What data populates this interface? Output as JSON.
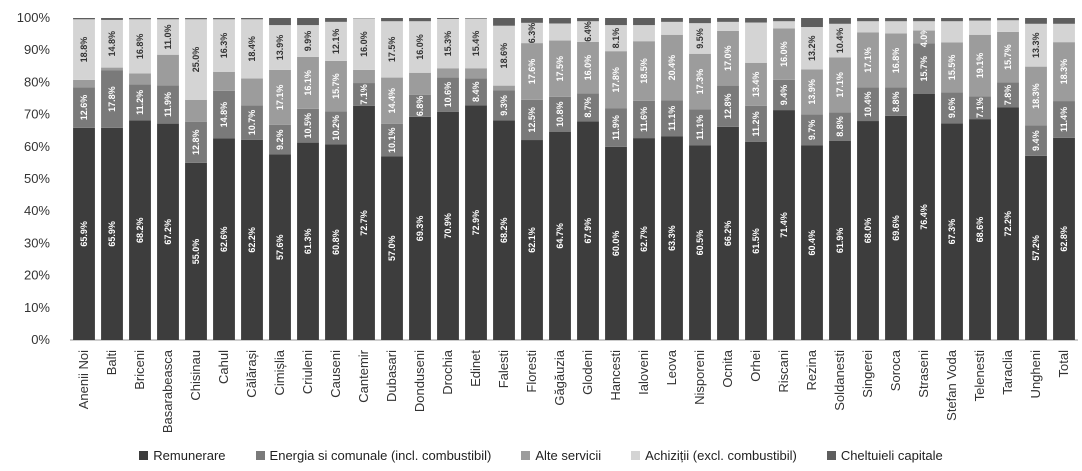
{
  "chart_data": {
    "type": "bar",
    "stacked": true,
    "percent": true,
    "title": "",
    "xlabel": "",
    "ylabel": "",
    "ylim": [
      0,
      100
    ],
    "yticks": [
      "0%",
      "10%",
      "20%",
      "30%",
      "40%",
      "50%",
      "60%",
      "70%",
      "80%",
      "90%",
      "100%"
    ],
    "grid": false,
    "legend_position": "bottom",
    "categories": [
      "Anenii Noi",
      "Balti",
      "Briceni",
      "Basarabeasca",
      "Chisinau",
      "Cahul",
      "Călărași",
      "Cimișlia",
      "Criuleni",
      "Causeni",
      "Cantemir",
      "Dubasari",
      "Donduseni",
      "Drochia",
      "Edinet",
      "Falesti",
      "Floresti",
      "Găgăuzia",
      "Glodeni",
      "Hancesti",
      "Ialoveni",
      "Leova",
      "Nisporeni",
      "Ocnita",
      "Orhei",
      "Riscani",
      "Rezina",
      "Soldanesti",
      "Singerei",
      "Soroca",
      "Straseni",
      "Stefan Voda",
      "Telenesti",
      "Taraclia",
      "Ungheni",
      "Total"
    ],
    "series": [
      {
        "name": "Remunerare",
        "color": "#3d3d3d",
        "text_color": "#ffffff",
        "values": [
          65.9,
          65.9,
          68.2,
          67.2,
          55.0,
          62.6,
          62.2,
          57.6,
          61.3,
          60.8,
          72.7,
          57.0,
          69.3,
          70.9,
          72.9,
          68.2,
          62.1,
          64.7,
          67.9,
          60.0,
          62.7,
          63.3,
          60.5,
          66.2,
          61.5,
          71.4,
          60.4,
          61.9,
          68.0,
          69.6,
          76.4,
          67.3,
          68.6,
          72.2,
          57.2,
          62.8
        ],
        "labels": [
          "65.9%",
          "65.9%",
          "68.2%",
          "67.2%",
          "55.0%",
          "62.6%",
          "62.2%",
          "57.6%",
          "61.3%",
          "60.8%",
          "72.7%",
          "57.0%",
          "69.3%",
          "70.9%",
          "72.9%",
          "68.2%",
          "62.1%",
          "64.7%",
          "67.9%",
          "60.0%",
          "62.7%",
          "63.3%",
          "60.5%",
          "66.2%",
          "61.5%",
          "71.4%",
          "60.4%",
          "61.9%",
          "68.0%",
          "69.6%",
          "76.4%",
          "67.3%",
          "68.6%",
          "72.2%",
          "57.2%",
          "62.8%"
        ]
      },
      {
        "name": "Energia si comunale (incl. combustibil)",
        "color": "#7a7a7a",
        "text_color": "#ffffff",
        "values": [
          12.6,
          17.8,
          11.2,
          11.9,
          12.8,
          14.8,
          10.7,
          9.2,
          10.5,
          10.2,
          7.1,
          10.1,
          6.8,
          10.6,
          8.4,
          9.3,
          12.5,
          10.8,
          8.7,
          11.9,
          11.6,
          11.1,
          11.1,
          12.8,
          11.2,
          9.4,
          9.7,
          8.8,
          10.4,
          8.8,
          15.7,
          9.6,
          7.1,
          7.8,
          9.4,
          11.4
        ],
        "labels": [
          "12.6%",
          "17.8%",
          "11.2%",
          "11.9%",
          "12.8%",
          "14.8%",
          "10.7%",
          "9.2%",
          "10.5%",
          "10.2%",
          "7.1%",
          "10.1%",
          "6.8%",
          "10.6%",
          "8.4%",
          "9.3%",
          "12.5%",
          "10.8%",
          "8.7%",
          "11.9%",
          "11.6%",
          "11.1%",
          "11.1%",
          "12.8%",
          "11.2%",
          "9.4%",
          "9.7%",
          "8.8%",
          "10.4%",
          "8.8%",
          "15.7%",
          "9.6%",
          "7.1%",
          "7.8%",
          "9.4%",
          "11.4%"
        ]
      },
      {
        "name": "Alte servicii",
        "color": "#9c9c9c",
        "text_color": "#ffffff",
        "values": [
          2.3,
          0.9,
          3.4,
          9.5,
          6.8,
          5.9,
          8.3,
          17.1,
          16.1,
          15.7,
          4.1,
          14.4,
          6.9,
          2.9,
          3.1,
          1.5,
          17.6,
          17.5,
          16.0,
          17.8,
          18.5,
          20.4,
          17.3,
          17.0,
          13.4,
          16.0,
          13.9,
          17.1,
          17.1,
          16.8,
          4.0,
          15.5,
          19.1,
          15.7,
          18.3,
          18.3
        ],
        "labels": [
          "",
          "",
          "",
          "",
          "",
          "",
          "",
          "17.1%",
          "16.1%",
          "15.7%",
          "",
          "14.4%",
          "",
          "",
          "",
          "",
          "17.6%",
          "17.5%",
          "16.0%",
          "17.8%",
          "18.5%",
          "20.4%",
          "17.3%",
          "17.0%",
          "13.4%",
          "16.0%",
          "13.9%",
          "17.1%",
          "17.1%",
          "16.8%",
          "4.0%",
          "15.5%",
          "19.1%",
          "15.7%",
          "18.3%",
          "18.3%"
        ]
      },
      {
        "name": "Achiziții (excl. combustibil)",
        "color": "#d4d4d4",
        "text_color": "#333333",
        "values": [
          18.8,
          14.8,
          16.8,
          11.0,
          25.0,
          16.3,
          18.4,
          13.9,
          9.9,
          12.1,
          16.0,
          17.5,
          16.0,
          15.3,
          15.4,
          18.6,
          6.3,
          5.3,
          6.4,
          8.1,
          5.0,
          4.0,
          9.5,
          2.8,
          12.5,
          2.2,
          13.2,
          10.4,
          3.5,
          3.8,
          2.9,
          6.6,
          4.4,
          3.6,
          13.3,
          5.7
        ],
        "labels": [
          "18.8%",
          "14.8%",
          "16.8%",
          "11.0%",
          "25.0%",
          "16.3%",
          "18.4%",
          "13.9%",
          "9.9%",
          "12.1%",
          "16.0%",
          "17.5%",
          "16.0%",
          "15.3%",
          "15.4%",
          "18.6%",
          "6.3%",
          "",
          "6.4%",
          "8.1%",
          "",
          "",
          "9.5%",
          "",
          "",
          "",
          "13.2%",
          "10.4%",
          "",
          "",
          "",
          "",
          "",
          "",
          "13.3%",
          ""
        ]
      },
      {
        "name": "Cheltuieli capitale",
        "color": "#5e5e5e",
        "text_color": "#ffffff",
        "values": [
          0.4,
          0.6,
          0.4,
          0.4,
          0.4,
          0.4,
          0.4,
          2.2,
          2.2,
          1.2,
          0.1,
          1.0,
          1.0,
          0.3,
          0.2,
          2.4,
          1.5,
          1.7,
          1.0,
          2.2,
          2.2,
          1.2,
          1.6,
          1.2,
          1.4,
          1.0,
          2.8,
          1.8,
          1.0,
          1.0,
          1.0,
          1.0,
          0.8,
          0.7,
          1.8,
          1.8
        ],
        "labels": [
          "",
          "",
          "",
          "",
          "",
          "",
          "",
          "",
          "",
          "",
          "",
          "",
          "",
          "",
          "",
          "",
          "",
          "",
          "",
          "",
          "",
          "",
          "",
          "",
          "",
          "",
          "",
          "",
          "",
          "",
          "",
          "",
          "",
          "",
          "",
          ""
        ]
      }
    ]
  }
}
